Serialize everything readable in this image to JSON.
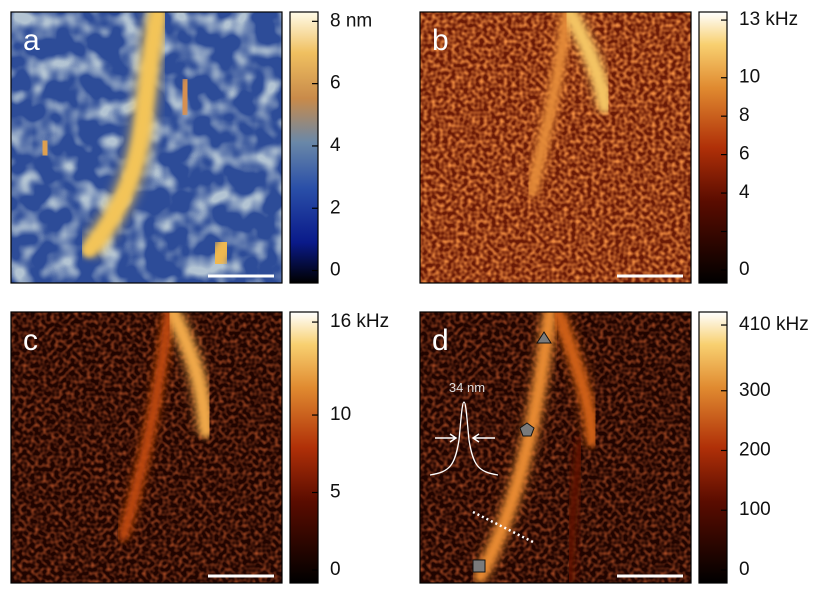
{
  "panels": [
    {
      "label": "a",
      "colorbar": {
        "range": [
          -0.4,
          8.3
        ],
        "ticks": [
          {
            "value": 8,
            "label": "8 nm"
          },
          6,
          4,
          2,
          0
        ]
      }
    },
    {
      "label": "b",
      "colorbar": {
        "range": [
          -0.68,
          13.42
        ],
        "ticks": [
          {
            "value": 13,
            "label": "13 kHz"
          },
          10,
          8,
          6,
          4,
          0
        ],
        "minor_ticks": [
          2
        ]
      }
    },
    {
      "label": "c",
      "colorbar": {
        "range": [
          -0.84,
          16.65
        ],
        "ticks": [
          {
            "value": 16,
            "label": "16 kHz"
          },
          10,
          5,
          0
        ]
      }
    },
    {
      "label": "d",
      "colorbar": {
        "range": [
          -21.8,
          431.8
        ],
        "ticks": [
          {
            "value": 410,
            "label": "410 kHz"
          },
          300,
          200,
          100,
          0
        ]
      }
    }
  ],
  "inset": {
    "width_label": "34 nm"
  }
}
